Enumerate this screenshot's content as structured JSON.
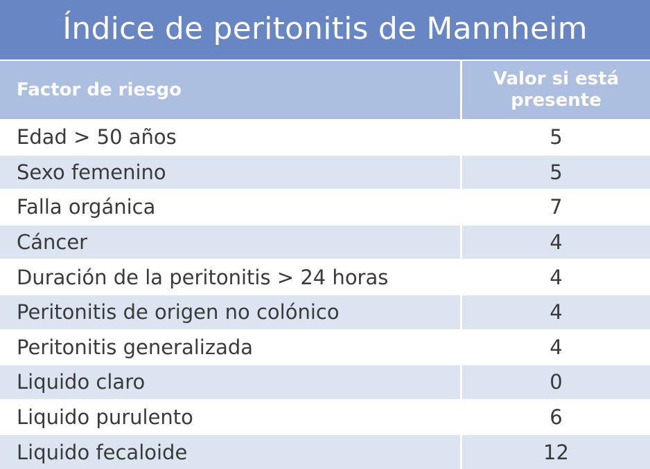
{
  "title": "Índice de peritonitis de Mannheim",
  "header": {
    "factor": "Factor de riesgo",
    "value_line1": "Valor si está",
    "value_line2": "presente"
  },
  "rows": [
    {
      "factor": "Edad > 50 años",
      "value": "5"
    },
    {
      "factor": "Sexo femenino",
      "value": "5"
    },
    {
      "factor": "Falla orgánica",
      "value": "7"
    },
    {
      "factor": "Cáncer",
      "value": "4"
    },
    {
      "factor": "Duración de la peritonitis > 24 horas",
      "value": "4"
    },
    {
      "factor": "Peritonitis de origen no colónico",
      "value": "4"
    },
    {
      "factor": "Peritonitis generalizada",
      "value": "4"
    },
    {
      "factor": "Liquido claro",
      "value": "0"
    },
    {
      "factor": "Liquido purulento",
      "value": "6"
    },
    {
      "factor": "Liquido fecaloide",
      "value": "12"
    }
  ],
  "colors": {
    "title_bg": "#6786c3",
    "header_bg": "#adbfe1",
    "row_alt_bg": "#dde4f1",
    "text": "#3a3a3a"
  }
}
